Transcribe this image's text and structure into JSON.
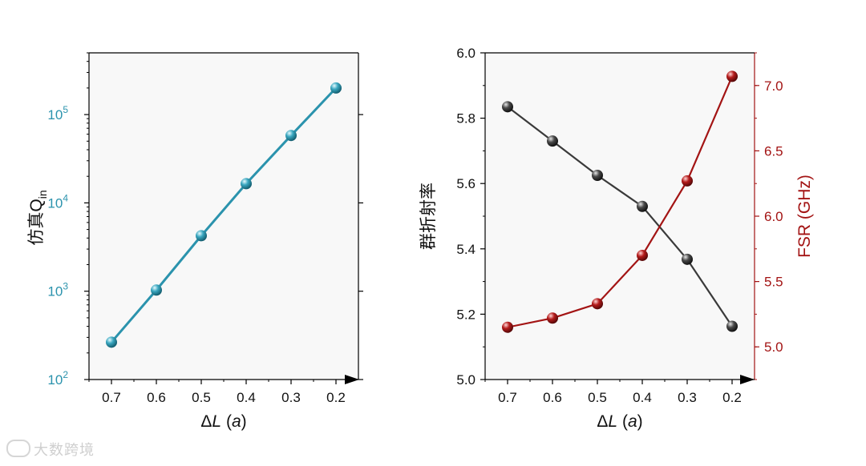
{
  "chart_data": [
    {
      "type": "line",
      "ylabel_main": "仿真Q",
      "ylabel_sub": "in",
      "xlabel_prefix": "ΔL",
      "xlabel_unit": "(a)",
      "xlim": [
        0.75,
        0.15
      ],
      "ylim": [
        100,
        500000
      ],
      "yscale": "log",
      "x_ticks": [
        "0.7",
        "0.6",
        "0.5",
        "0.4",
        "0.3",
        "0.2"
      ],
      "y_ticks": [
        {
          "base": "10",
          "exp": "2",
          "value": 100
        },
        {
          "base": "10",
          "exp": "3",
          "value": 1000
        },
        {
          "base": "10",
          "exp": "4",
          "value": 10000
        },
        {
          "base": "10",
          "exp": "5",
          "value": 100000
        }
      ],
      "series": [
        {
          "x": [
            0.7,
            0.6,
            0.5,
            0.4,
            0.3,
            0.2
          ],
          "y": [
            265,
            1030,
            4250,
            16500,
            58000,
            200000
          ],
          "color": "#2b93ad"
        }
      ],
      "grid": false
    },
    {
      "type": "line",
      "ylabel_left": "群折射率",
      "ylabel_right": "FSR (GHz)",
      "xlabel_prefix": "ΔL",
      "xlabel_unit": "(a)",
      "xlim": [
        0.75,
        0.15
      ],
      "ylim_left": [
        5.0,
        6.0
      ],
      "ylim_right": [
        4.75,
        7.25
      ],
      "x_ticks": [
        "0.7",
        "0.6",
        "0.5",
        "0.4",
        "0.3",
        "0.2"
      ],
      "y_ticks_left": [
        "5.0",
        "5.2",
        "5.4",
        "5.6",
        "5.8",
        "6.0"
      ],
      "y_ticks_right": [
        "5.0",
        "5.5",
        "6.0",
        "6.5",
        "7.0"
      ],
      "series": [
        {
          "axis": "left",
          "x": [
            0.7,
            0.6,
            0.5,
            0.4,
            0.3,
            0.2
          ],
          "y": [
            5.835,
            5.73,
            5.625,
            5.53,
            5.368,
            5.163
          ],
          "color": "#3a3a3a"
        },
        {
          "axis": "right",
          "x": [
            0.7,
            0.6,
            0.5,
            0.4,
            0.3,
            0.2
          ],
          "y": [
            5.15,
            5.22,
            5.33,
            5.7,
            6.27,
            7.07
          ],
          "color": "#a31414"
        }
      ],
      "grid": false
    }
  ],
  "colors": {
    "teal": "#2b93ad",
    "black": "#3a3a3a",
    "red": "#a31414"
  },
  "watermark": "大数跨境"
}
